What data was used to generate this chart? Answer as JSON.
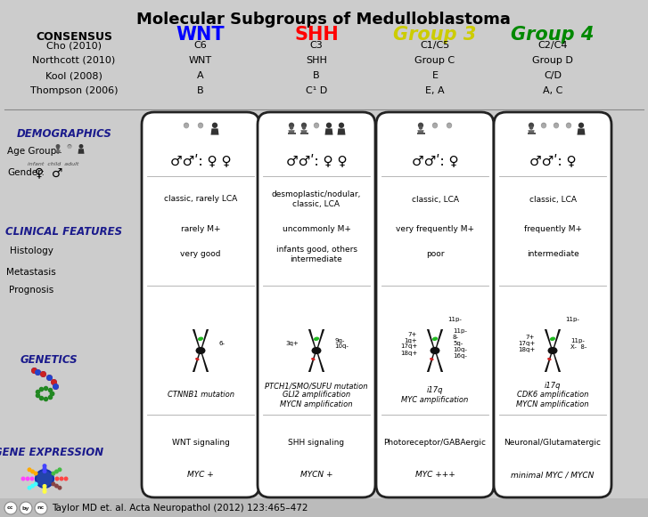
{
  "title": "Molecular Subgroups of Medulloblastoma",
  "bg_color": "#cccccc",
  "box_bg": "#ffffff",
  "columns": [
    "WNT",
    "SHH",
    "Group 3",
    "Group 4"
  ],
  "col_colors": [
    "#0000ff",
    "#ff0000",
    "#cccc00",
    "#008800"
  ],
  "consensus_label": "CONSENSUS",
  "consensus_rows": [
    {
      "label": "Cho (2010)",
      "vals": [
        "C6",
        "C3",
        "C1/C5",
        "C2/C4"
      ]
    },
    {
      "label": "Northcott (2010)",
      "vals": [
        "WNT",
        "SHH",
        "Group C",
        "Group D"
      ]
    },
    {
      "label": "Kool (2008)",
      "vals": [
        "A",
        "B",
        "E",
        "C/D"
      ]
    },
    {
      "label": "Thompson (2006)",
      "vals": [
        "B",
        "C¹ D",
        "E, A",
        "A, C"
      ]
    }
  ],
  "hist_texts": [
    "classic, rarely LCA",
    "desmoplastic/nodular,\nclassic, LCA",
    "classic, LCA",
    "classic, LCA"
  ],
  "meta_texts": [
    "rarely M+",
    "uncommonly M+",
    "very frequently M+",
    "frequently M+"
  ],
  "prog_texts": [
    "very good",
    "infants good, others\nintermediate",
    "poor",
    "intermediate"
  ],
  "gen_texts": [
    "CTNNB1 mutation",
    "PTCH1/SMO/SUFU mutation\nGLI2 amplification\nMYCN amplification",
    "i17q\nMYC amplification",
    "i17q\nCDK6 amplification\nMYCN amplification"
  ],
  "chrom_left": [
    "",
    "3q+",
    "7+\n1q+\n17q+\n18q+",
    "7+\n17q+\n18q+"
  ],
  "chrom_right": [
    "6-",
    "9q-\n10q-",
    "11p-\n8-\n5q-\n10q-\n16q-",
    "11p-\nX-  8-"
  ],
  "chrom_top": [
    "",
    "",
    "11p-",
    "11p-"
  ],
  "gexpr_texts": [
    "WNT signaling",
    "SHH signaling",
    "Photoreceptor/GABAergic",
    "Neuronal/Glutamatergic"
  ],
  "myc_texts": [
    "MYC +",
    "MYCN +",
    "MYC +++",
    "minimal MYC / MYCN"
  ],
  "footer": "Taylor MD et. al. Acta Neuropathol (2012) 123:465–472",
  "gender_texts": [
    "♂♂ʹ: ♀ ♀",
    "♂♂ʹ: ♀ ♀",
    "♂♂ʹ: ♀",
    "♂♂ʹ: ♀"
  ]
}
